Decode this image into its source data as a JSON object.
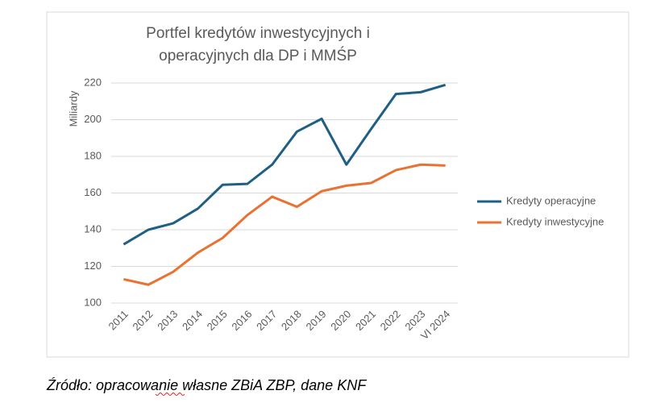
{
  "chart_data": {
    "type": "line",
    "title": "Portfel kredytów inwestycyjnych i operacyjnych dla DP i MMŚP",
    "y_label": "Miliardy",
    "categories": [
      "2011",
      "2012",
      "2013",
      "2014",
      "2015",
      "2016",
      "2017",
      "2018",
      "2019",
      "2020",
      "2021",
      "2022",
      "2023",
      "VI 2024"
    ],
    "series": [
      {
        "name": "Kredyty operacyjne",
        "color": "#1f5f86",
        "values": [
          132,
          140,
          143.5,
          151.5,
          164.5,
          165,
          175.5,
          193.5,
          200.5,
          175.5,
          195,
          214,
          215,
          219
        ]
      },
      {
        "name": "Kredyty inwestycyjne",
        "color": "#e97132",
        "values": [
          113,
          110,
          117,
          127.5,
          135.5,
          148,
          158,
          152.5,
          161,
          164,
          165.5,
          172.5,
          175.5,
          175
        ]
      }
    ],
    "ylim": [
      100,
      220
    ],
    "yticks": [
      100,
      120,
      140,
      160,
      180,
      200,
      220
    ],
    "grid": true,
    "legend": "right"
  },
  "source": "Źródło: opracowanie własne ZBiA ZBP, dane KNF"
}
